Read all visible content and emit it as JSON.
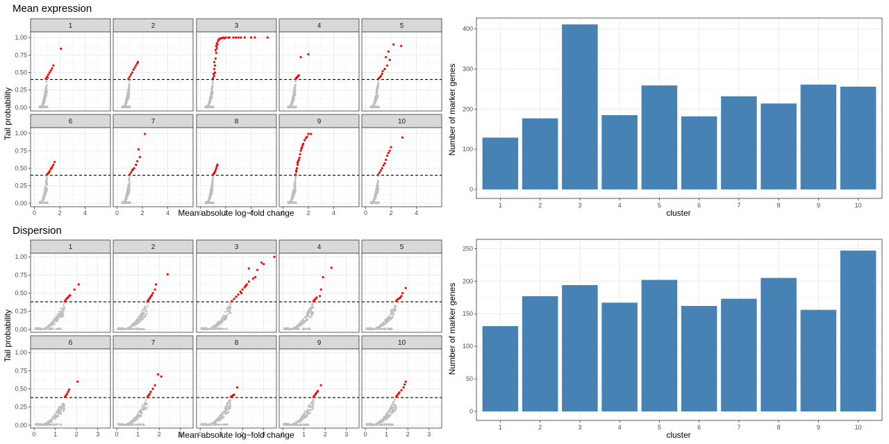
{
  "colors": {
    "bar": "#4682B4",
    "marker": "#FF0000",
    "background_point": "#BEBEBE",
    "strip": "#D9D9D9",
    "grid": "#EBEBEB",
    "axis_text": "#4D4D4D"
  },
  "chart_data": [
    {
      "id": "mean-expression-scatter",
      "type": "scatter",
      "title": "Mean expression",
      "xlabel": "Mean absolute log−fold change",
      "ylabel": "Tail probability",
      "xlim": [
        -0.3,
        6.0
      ],
      "ylim": [
        -0.05,
        1.08
      ],
      "xticks": [
        0,
        2,
        4
      ],
      "xtick_labels": [
        "0",
        "2",
        "4"
      ],
      "yticks": [
        0,
        0.25,
        0.5,
        0.75,
        1.0
      ],
      "ytick_labels": [
        "0.00",
        "0.25",
        "0.50",
        "0.75",
        "1.00"
      ],
      "threshold": 0.4,
      "panels": [
        "1",
        "2",
        "3",
        "4",
        "5",
        "6",
        "7",
        "8",
        "9",
        "10"
      ],
      "marker_points": [
        [
          [
            0.9,
            0.41
          ],
          [
            1.0,
            0.44
          ],
          [
            1.1,
            0.47
          ],
          [
            1.2,
            0.5
          ],
          [
            1.3,
            0.53
          ],
          [
            1.4,
            0.56
          ],
          [
            1.5,
            0.6
          ],
          [
            1.05,
            0.43
          ],
          [
            2.1,
            0.84
          ]
        ],
        [
          [
            0.9,
            0.41
          ],
          [
            1.0,
            0.44
          ],
          [
            1.1,
            0.47
          ],
          [
            1.2,
            0.5
          ],
          [
            1.3,
            0.54
          ],
          [
            1.4,
            0.57
          ],
          [
            1.5,
            0.6
          ],
          [
            1.6,
            0.63
          ],
          [
            1.65,
            0.65
          ]
        ],
        [
          [
            1.0,
            0.42
          ],
          [
            1.05,
            0.48
          ],
          [
            1.1,
            0.55
          ],
          [
            1.15,
            0.6
          ],
          [
            1.2,
            0.7
          ],
          [
            1.25,
            0.78
          ],
          [
            1.3,
            0.85
          ],
          [
            1.35,
            0.9
          ],
          [
            1.4,
            0.95
          ],
          [
            1.5,
            0.98
          ],
          [
            1.6,
            0.99
          ],
          [
            1.8,
            1.0
          ],
          [
            2.0,
            1.0
          ],
          [
            2.3,
            1.0
          ],
          [
            2.6,
            1.0
          ],
          [
            3.0,
            1.0
          ],
          [
            3.5,
            1.0
          ],
          [
            4.0,
            1.0
          ],
          [
            4.3,
            1.0
          ],
          [
            5.3,
            1.0
          ],
          [
            1.1,
            0.65
          ],
          [
            1.2,
            0.82
          ],
          [
            1.3,
            0.92
          ],
          [
            1.45,
            0.97
          ],
          [
            1.7,
            0.99
          ],
          [
            2.2,
            1.0
          ],
          [
            1.15,
            0.5
          ],
          [
            1.25,
            0.88
          ],
          [
            1.9,
            0.99
          ],
          [
            2.8,
            1.0
          ],
          [
            3.2,
            1.0
          ],
          [
            1.08,
            0.45
          ]
        ],
        [
          [
            1.0,
            0.41
          ],
          [
            1.05,
            0.42
          ],
          [
            1.1,
            0.43
          ],
          [
            1.15,
            0.44
          ],
          [
            1.2,
            0.45
          ],
          [
            1.25,
            0.46
          ],
          [
            1.4,
            0.72
          ],
          [
            2.0,
            0.76
          ]
        ],
        [
          [
            1.0,
            0.41
          ],
          [
            1.1,
            0.43
          ],
          [
            1.2,
            0.45
          ],
          [
            1.3,
            0.48
          ],
          [
            1.35,
            0.52
          ],
          [
            1.5,
            0.55
          ],
          [
            1.7,
            0.6
          ],
          [
            1.6,
            0.72
          ],
          [
            1.8,
            0.8
          ],
          [
            2.2,
            0.9
          ],
          [
            2.8,
            0.88
          ],
          [
            1.9,
            0.68
          ]
        ],
        [
          [
            1.0,
            0.41
          ],
          [
            1.1,
            0.43
          ],
          [
            1.2,
            0.46
          ],
          [
            1.3,
            0.49
          ],
          [
            1.4,
            0.52
          ],
          [
            1.5,
            0.55
          ],
          [
            1.6,
            0.59
          ],
          [
            1.15,
            0.44
          ],
          [
            1.35,
            0.5
          ]
        ],
        [
          [
            1.0,
            0.41
          ],
          [
            1.1,
            0.44
          ],
          [
            1.2,
            0.47
          ],
          [
            1.35,
            0.5
          ],
          [
            1.5,
            0.55
          ],
          [
            1.6,
            0.6
          ],
          [
            1.8,
            0.66
          ],
          [
            1.7,
            0.77
          ],
          [
            2.2,
            0.99
          ],
          [
            1.25,
            0.48
          ]
        ],
        [
          [
            1.0,
            0.41
          ],
          [
            1.05,
            0.42
          ],
          [
            1.1,
            0.43
          ],
          [
            1.15,
            0.45
          ],
          [
            1.2,
            0.47
          ],
          [
            1.25,
            0.5
          ],
          [
            1.3,
            0.53
          ],
          [
            1.35,
            0.55
          ]
        ],
        [
          [
            1.0,
            0.41
          ],
          [
            1.05,
            0.45
          ],
          [
            1.1,
            0.5
          ],
          [
            1.15,
            0.55
          ],
          [
            1.2,
            0.6
          ],
          [
            1.3,
            0.65
          ],
          [
            1.35,
            0.7
          ],
          [
            1.4,
            0.75
          ],
          [
            1.5,
            0.8
          ],
          [
            1.6,
            0.85
          ],
          [
            1.7,
            0.9
          ],
          [
            1.9,
            0.95
          ],
          [
            2.0,
            0.99
          ],
          [
            2.2,
            0.99
          ],
          [
            1.25,
            0.62
          ],
          [
            1.45,
            0.78
          ],
          [
            1.55,
            0.83
          ],
          [
            1.8,
            0.93
          ],
          [
            1.15,
            0.58
          ],
          [
            1.05,
            0.47
          ]
        ],
        [
          [
            1.0,
            0.41
          ],
          [
            1.1,
            0.44
          ],
          [
            1.2,
            0.47
          ],
          [
            1.3,
            0.5
          ],
          [
            1.4,
            0.54
          ],
          [
            1.5,
            0.57
          ],
          [
            1.6,
            0.62
          ],
          [
            1.7,
            0.68
          ],
          [
            1.9,
            0.75
          ],
          [
            2.0,
            0.8
          ],
          [
            1.8,
            0.72
          ],
          [
            2.9,
            0.94
          ]
        ]
      ]
    },
    {
      "id": "mean-expression-bars",
      "type": "bar",
      "title": "",
      "xlabel": "cluster",
      "ylabel": "Number of marker genes",
      "categories": [
        "1",
        "2",
        "3",
        "4",
        "5",
        "6",
        "7",
        "8",
        "9",
        "10"
      ],
      "values": [
        129,
        177,
        411,
        185,
        259,
        182,
        232,
        214,
        261,
        256
      ],
      "ylim": [
        0,
        420
      ],
      "yticks": [
        0,
        100,
        200,
        300,
        400
      ],
      "ytick_labels": [
        "0",
        "100",
        "200",
        "300",
        "400"
      ]
    },
    {
      "id": "dispersion-scatter",
      "type": "scatter",
      "title": "Dispersion",
      "xlabel": "Mean absolute log−fold change",
      "ylabel": "Tail probability",
      "xlim": [
        -0.17,
        3.6
      ],
      "ylim": [
        -0.04,
        1.05
      ],
      "xticks": [
        0,
        1,
        2,
        3
      ],
      "xtick_labels": [
        "0",
        "1",
        "2",
        "3"
      ],
      "yticks": [
        0,
        0.25,
        0.5,
        0.75,
        1.0
      ],
      "ytick_labels": [
        "0.00",
        "0.25",
        "0.50",
        "0.75",
        "1.00"
      ],
      "threshold": 0.38,
      "panels": [
        "1",
        "2",
        "3",
        "4",
        "5",
        "6",
        "7",
        "8",
        "9",
        "10"
      ],
      "marker_points": [
        [
          [
            1.45,
            0.39
          ],
          [
            1.5,
            0.41
          ],
          [
            1.55,
            0.43
          ],
          [
            1.6,
            0.44
          ],
          [
            1.65,
            0.46
          ],
          [
            1.7,
            0.47
          ],
          [
            1.9,
            0.55
          ],
          [
            2.1,
            0.62
          ]
        ],
        [
          [
            1.45,
            0.39
          ],
          [
            1.5,
            0.41
          ],
          [
            1.55,
            0.43
          ],
          [
            1.6,
            0.45
          ],
          [
            1.65,
            0.47
          ],
          [
            1.7,
            0.5
          ],
          [
            1.8,
            0.55
          ],
          [
            1.85,
            0.62
          ],
          [
            2.4,
            0.76
          ]
        ],
        [
          [
            1.5,
            0.39
          ],
          [
            1.6,
            0.42
          ],
          [
            1.7,
            0.45
          ],
          [
            1.8,
            0.48
          ],
          [
            1.9,
            0.52
          ],
          [
            2.0,
            0.55
          ],
          [
            2.1,
            0.58
          ],
          [
            2.2,
            0.62
          ],
          [
            2.3,
            0.66
          ],
          [
            2.5,
            0.7
          ],
          [
            2.3,
            0.84
          ],
          [
            2.6,
            0.72
          ],
          [
            2.7,
            0.82
          ],
          [
            2.9,
            0.92
          ],
          [
            3.0,
            0.9
          ],
          [
            3.5,
            1.0
          ],
          [
            1.95,
            0.5
          ],
          [
            2.15,
            0.6
          ]
        ],
        [
          [
            1.45,
            0.39
          ],
          [
            1.5,
            0.41
          ],
          [
            1.55,
            0.42
          ],
          [
            1.6,
            0.44
          ],
          [
            1.75,
            0.46
          ],
          [
            1.8,
            0.55
          ],
          [
            1.9,
            0.72
          ],
          [
            2.3,
            0.85
          ]
        ],
        [
          [
            1.45,
            0.39
          ],
          [
            1.5,
            0.41
          ],
          [
            1.55,
            0.42
          ],
          [
            1.6,
            0.43
          ],
          [
            1.65,
            0.44
          ],
          [
            1.7,
            0.46
          ],
          [
            1.75,
            0.5
          ],
          [
            1.9,
            0.57
          ]
        ],
        [
          [
            1.45,
            0.39
          ],
          [
            1.5,
            0.41
          ],
          [
            1.55,
            0.43
          ],
          [
            1.6,
            0.46
          ],
          [
            1.65,
            0.49
          ],
          [
            2.05,
            0.6
          ]
        ],
        [
          [
            1.45,
            0.39
          ],
          [
            1.5,
            0.41
          ],
          [
            1.55,
            0.43
          ],
          [
            1.6,
            0.46
          ],
          [
            1.7,
            0.5
          ],
          [
            1.8,
            0.55
          ],
          [
            1.95,
            0.7
          ],
          [
            2.1,
            0.67
          ]
        ],
        [
          [
            1.45,
            0.39
          ],
          [
            1.5,
            0.4
          ],
          [
            1.55,
            0.41
          ],
          [
            1.6,
            0.42
          ],
          [
            1.75,
            0.52
          ]
        ],
        [
          [
            1.45,
            0.39
          ],
          [
            1.5,
            0.41
          ],
          [
            1.55,
            0.43
          ],
          [
            1.6,
            0.45
          ],
          [
            1.65,
            0.47
          ],
          [
            1.8,
            0.55
          ]
        ],
        [
          [
            1.45,
            0.39
          ],
          [
            1.5,
            0.41
          ],
          [
            1.55,
            0.43
          ],
          [
            1.6,
            0.45
          ],
          [
            1.7,
            0.48
          ],
          [
            1.8,
            0.52
          ],
          [
            1.85,
            0.56
          ],
          [
            1.9,
            0.6
          ]
        ]
      ]
    },
    {
      "id": "dispersion-bars",
      "type": "bar",
      "title": "",
      "xlabel": "cluster",
      "ylabel": "Number of marker genes",
      "categories": [
        "1",
        "2",
        "3",
        "4",
        "5",
        "6",
        "7",
        "8",
        "9",
        "10"
      ],
      "values": [
        131,
        177,
        194,
        167,
        202,
        162,
        173,
        205,
        156,
        247
      ],
      "ylim": [
        0,
        260
      ],
      "yticks": [
        0,
        50,
        100,
        150,
        200,
        250
      ],
      "ytick_labels": [
        "0",
        "50",
        "100",
        "150",
        "200",
        "250"
      ]
    }
  ]
}
